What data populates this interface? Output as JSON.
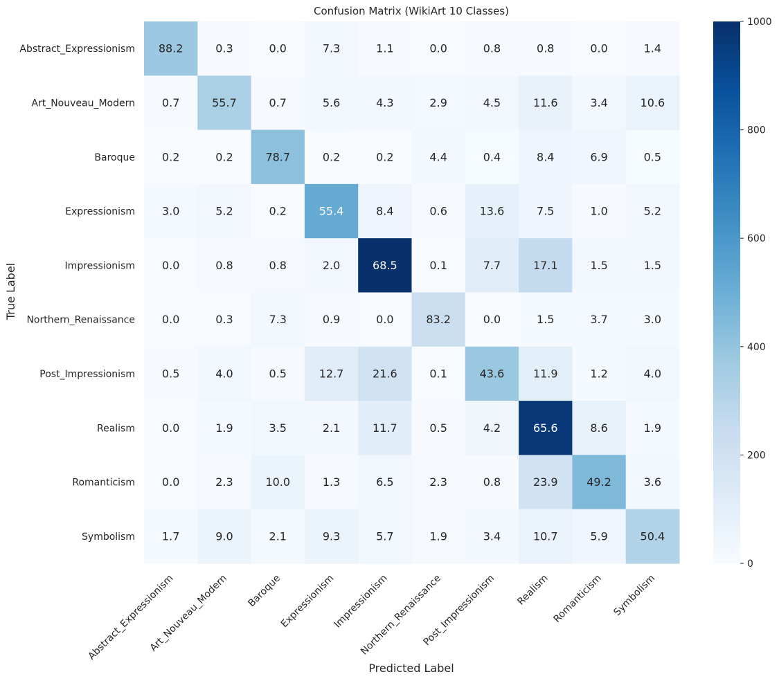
{
  "chart_data": {
    "type": "heatmap",
    "title": "Confusion Matrix (WikiArt 10 Classes)",
    "xlabel": "Predicted Label",
    "ylabel": "True Label",
    "classes": [
      "Abstract_Expressionism",
      "Art_Nouveau_Modern",
      "Baroque",
      "Expressionism",
      "Impressionism",
      "Northern_Renaissance",
      "Post_Impressionism",
      "Realism",
      "Romanticism",
      "Symbolism"
    ],
    "percentages": [
      [
        88.2,
        0.3,
        0.0,
        7.3,
        1.1,
        0.0,
        0.8,
        0.8,
        0.0,
        1.4
      ],
      [
        0.7,
        55.7,
        0.7,
        5.6,
        4.3,
        2.9,
        4.5,
        11.6,
        3.4,
        10.6
      ],
      [
        0.2,
        0.2,
        78.7,
        0.2,
        0.2,
        4.4,
        0.4,
        8.4,
        6.9,
        0.5
      ],
      [
        3.0,
        5.2,
        0.2,
        55.4,
        8.4,
        0.6,
        13.6,
        7.5,
        1.0,
        5.2
      ],
      [
        0.0,
        0.8,
        0.8,
        2.0,
        68.5,
        0.1,
        7.7,
        17.1,
        1.5,
        1.5
      ],
      [
        0.0,
        0.3,
        7.3,
        0.9,
        0.0,
        83.2,
        0.0,
        1.5,
        3.7,
        3.0
      ],
      [
        0.5,
        4.0,
        0.5,
        12.7,
        21.6,
        0.1,
        43.6,
        11.9,
        1.2,
        4.0
      ],
      [
        0.0,
        1.9,
        3.5,
        2.1,
        11.7,
        0.5,
        4.2,
        65.6,
        8.6,
        1.9
      ],
      [
        0.0,
        2.3,
        10.0,
        1.3,
        6.5,
        2.3,
        0.8,
        23.9,
        49.2,
        3.6
      ],
      [
        1.7,
        9.0,
        2.1,
        9.3,
        5.7,
        1.9,
        3.4,
        10.7,
        5.9,
        50.4
      ]
    ],
    "color_counts": [
      [
        380,
        5,
        0,
        30,
        5,
        0,
        4,
        4,
        0,
        6
      ],
      [
        5,
        335,
        5,
        35,
        27,
        18,
        28,
        72,
        21,
        65
      ],
      [
        2,
        2,
        420,
        2,
        2,
        25,
        3,
        45,
        37,
        3
      ],
      [
        18,
        32,
        2,
        520,
        52,
        4,
        85,
        47,
        6,
        32
      ],
      [
        0,
        12,
        12,
        30,
        1000,
        2,
        115,
        255,
        22,
        22
      ],
      [
        0,
        2,
        35,
        5,
        0,
        230,
        0,
        8,
        18,
        15
      ],
      [
        5,
        35,
        5,
        115,
        195,
        1,
        385,
        105,
        10,
        35
      ],
      [
        0,
        18,
        33,
        20,
        110,
        5,
        40,
        970,
        80,
        18
      ],
      [
        0,
        12,
        55,
        7,
        35,
        12,
        5,
        195,
        450,
        20
      ],
      [
        10,
        55,
        13,
        57,
        35,
        12,
        21,
        65,
        36,
        310
      ]
    ],
    "colorbar": {
      "min": 0,
      "max": 1000,
      "ticks": [
        0,
        200,
        400,
        600,
        800,
        1000
      ],
      "colormap": "Blues"
    },
    "annot_dark_color": "#262626",
    "annot_light_color": "#ffffff"
  }
}
